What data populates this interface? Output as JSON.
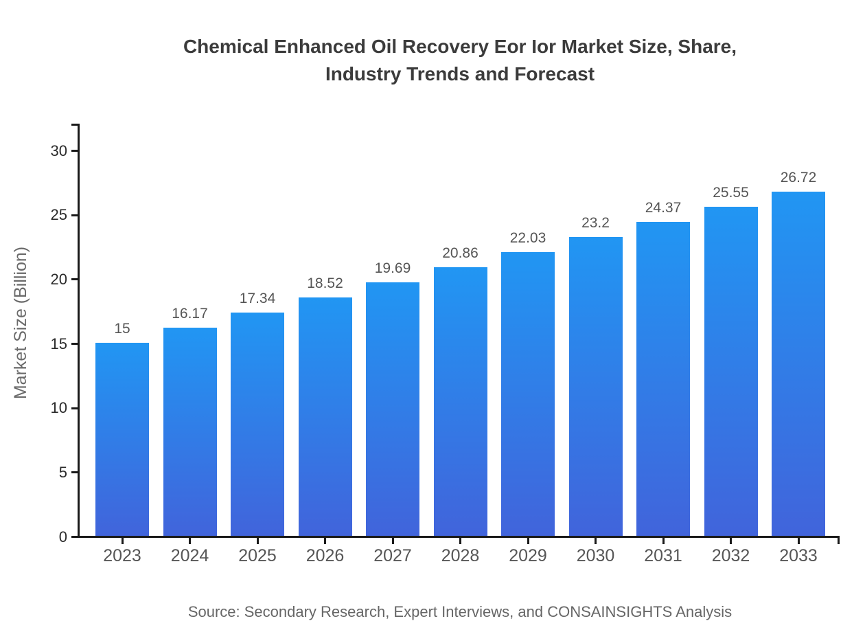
{
  "header": {
    "title_line1": "Chemical Enhanced Oil Recovery Eor Ior Market Size, Share,",
    "title_line2": "Industry Trends and Forecast"
  },
  "chart_data": {
    "type": "bar",
    "title": "Chemical Enhanced Oil Recovery Eor Ior Market Size, Share, Industry Trends and Forecast",
    "categories": [
      "2023",
      "2024",
      "2025",
      "2026",
      "2027",
      "2028",
      "2029",
      "2030",
      "2031",
      "2032",
      "2033"
    ],
    "values": [
      15,
      16.17,
      17.34,
      18.52,
      19.69,
      20.86,
      22.03,
      23.2,
      24.37,
      25.55,
      26.72
    ],
    "data_labels": [
      "15",
      "16.17",
      "17.34",
      "18.52",
      "19.69",
      "20.86",
      "22.03",
      "23.2",
      "24.37",
      "25.55",
      "26.72"
    ],
    "xlabel": "",
    "ylabel": "Market Size (Billion)",
    "ylim": [
      0,
      32
    ],
    "yticks": [
      0,
      5,
      10,
      15,
      20,
      25,
      30
    ],
    "grid": false,
    "legend": "none",
    "bar_color_top": "#2196f3",
    "bar_color_bottom": "#4164db"
  },
  "footer": {
    "source": "Source: Secondary Research, Expert Interviews, and CONSAINSIGHTS Analysis"
  },
  "colors": {
    "background": "#ffffff",
    "axis": "#1a1a1a",
    "y_tick_label": "#2a2a2a",
    "x_tick_label": "#565656",
    "value_label": "#555555",
    "title": "#3b3b3b",
    "muted_text": "#666666"
  }
}
